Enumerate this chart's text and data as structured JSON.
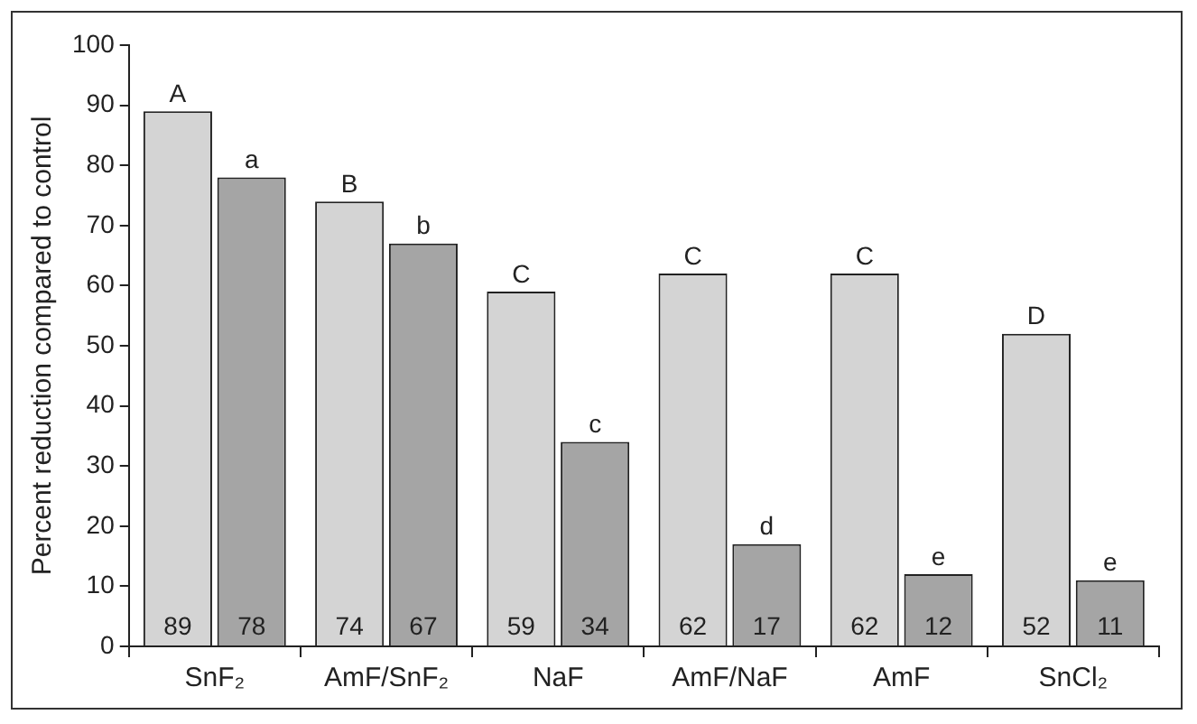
{
  "chart_data": {
    "type": "bar",
    "ylabel": "Percent reduction compared to control",
    "categories": [
      "SnF₂",
      "AmF/SnF₂",
      "NaF",
      "AmF/NaF",
      "AmF",
      "SnCl₂"
    ],
    "series": [
      {
        "color": "#d4d4d4",
        "values": [
          89,
          74,
          59,
          62,
          62,
          52
        ]
      },
      {
        "color": "#a5a5a5",
        "values": [
          78,
          67,
          34,
          17,
          12,
          11
        ]
      }
    ],
    "ylim": [
      0,
      100
    ],
    "yticks": [
      0,
      10,
      20,
      30,
      40,
      50,
      60,
      70,
      80,
      90,
      100
    ],
    "data_labels": true,
    "annotations": [
      {
        "text": "A",
        "x": "SnF₂",
        "y": 89
      },
      {
        "text": "a",
        "x": "SnF₂",
        "y": 78
      },
      {
        "text": "B",
        "x": "AmF/SnF₂",
        "y": 74
      },
      {
        "text": "b",
        "x": "AmF/SnF₂",
        "y": 67
      },
      {
        "text": "C",
        "x": "NaF",
        "y": 59
      },
      {
        "text": "c",
        "x": "NaF",
        "y": 34
      },
      {
        "text": "C",
        "x": "AmF/NaF",
        "y": 62
      },
      {
        "text": "d",
        "x": "AmF/NaF",
        "y": 17
      },
      {
        "text": "C",
        "x": "AmF",
        "y": 62
      },
      {
        "text": "e",
        "x": "AmF",
        "y": 12
      },
      {
        "text": "D",
        "x": "SnCl₂",
        "y": 52
      },
      {
        "text": "e",
        "x": "SnCl₂",
        "y": 11
      }
    ]
  }
}
